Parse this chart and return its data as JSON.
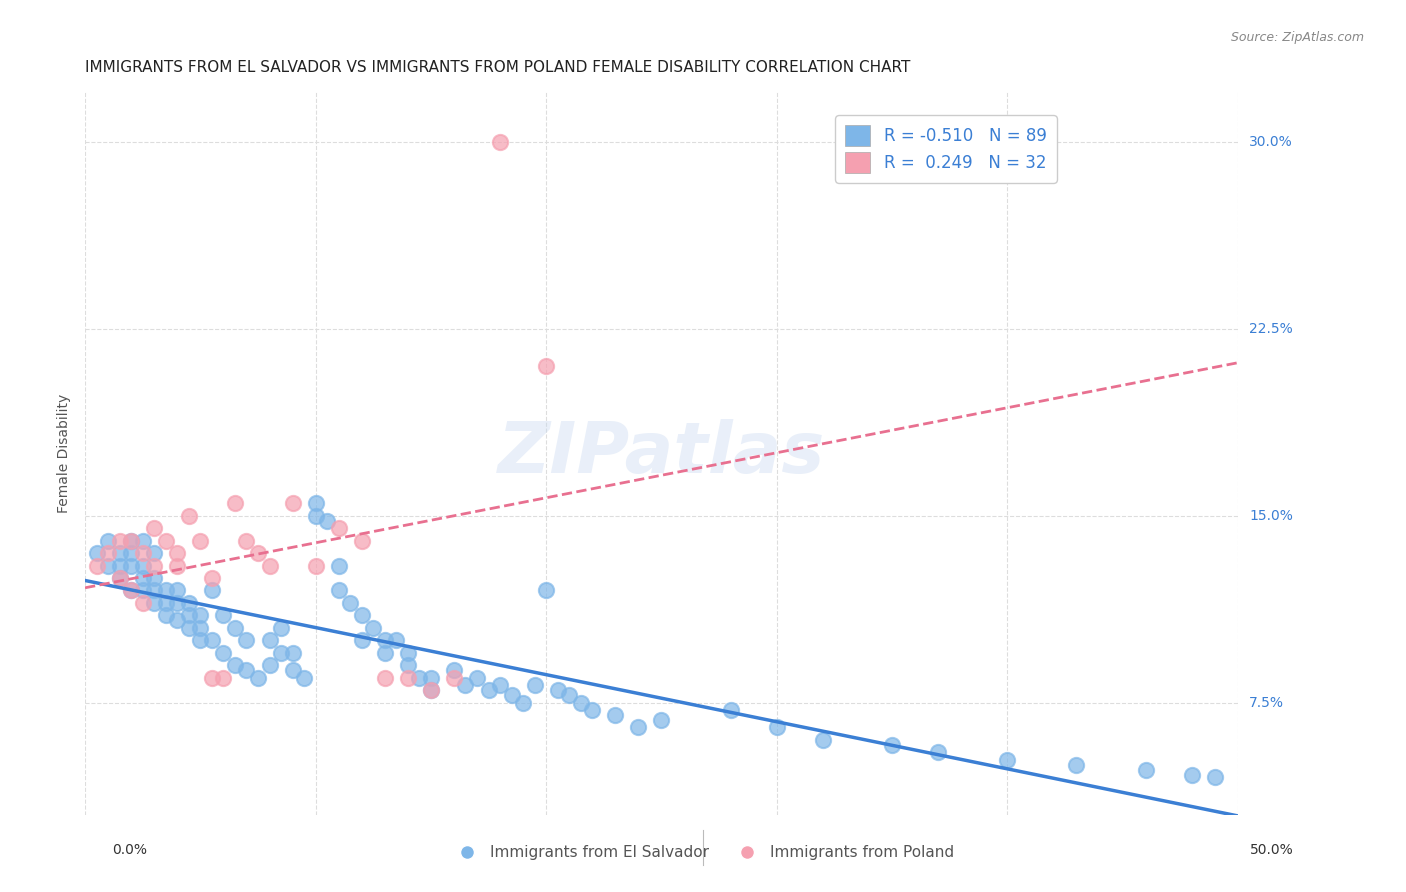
{
  "title": "IMMIGRANTS FROM EL SALVADOR VS IMMIGRANTS FROM POLAND FEMALE DISABILITY CORRELATION CHART",
  "source": "Source: ZipAtlas.com",
  "ylabel": "Female Disability",
  "y_ticks": [
    0.075,
    0.15,
    0.225,
    0.3
  ],
  "y_tick_labels": [
    "7.5%",
    "15.0%",
    "22.5%",
    "30.0%"
  ],
  "x_ticks": [
    0.0,
    0.1,
    0.2,
    0.3,
    0.4,
    0.5
  ],
  "xlim": [
    0.0,
    0.5
  ],
  "ylim": [
    0.03,
    0.32
  ],
  "r_salvador": -0.51,
  "n_salvador": 89,
  "r_poland": 0.249,
  "n_poland": 32,
  "blue_color": "#7EB6E8",
  "pink_color": "#F5A0B0",
  "blue_line_color": "#3B7FD4",
  "pink_line_color": "#E87090",
  "legend_text_color": "#3B7FD4",
  "watermark": "ZIPatlas",
  "background_color": "#FFFFFF",
  "grid_color": "#DDDDDD",
  "salvador_x": [
    0.005,
    0.01,
    0.01,
    0.015,
    0.015,
    0.015,
    0.02,
    0.02,
    0.02,
    0.02,
    0.025,
    0.025,
    0.025,
    0.025,
    0.03,
    0.03,
    0.03,
    0.03,
    0.035,
    0.035,
    0.035,
    0.04,
    0.04,
    0.04,
    0.045,
    0.045,
    0.045,
    0.05,
    0.05,
    0.05,
    0.055,
    0.055,
    0.06,
    0.06,
    0.065,
    0.065,
    0.07,
    0.07,
    0.075,
    0.08,
    0.08,
    0.085,
    0.085,
    0.09,
    0.09,
    0.095,
    0.1,
    0.1,
    0.105,
    0.11,
    0.11,
    0.115,
    0.12,
    0.12,
    0.125,
    0.13,
    0.13,
    0.135,
    0.14,
    0.14,
    0.145,
    0.15,
    0.15,
    0.16,
    0.165,
    0.17,
    0.175,
    0.18,
    0.185,
    0.19,
    0.195,
    0.2,
    0.205,
    0.21,
    0.215,
    0.22,
    0.23,
    0.24,
    0.25,
    0.28,
    0.3,
    0.32,
    0.35,
    0.37,
    0.4,
    0.43,
    0.46,
    0.48,
    0.49
  ],
  "salvador_y": [
    0.135,
    0.13,
    0.14,
    0.125,
    0.13,
    0.135,
    0.12,
    0.13,
    0.135,
    0.14,
    0.12,
    0.125,
    0.13,
    0.14,
    0.115,
    0.12,
    0.125,
    0.135,
    0.11,
    0.115,
    0.12,
    0.108,
    0.115,
    0.12,
    0.105,
    0.11,
    0.115,
    0.1,
    0.105,
    0.11,
    0.1,
    0.12,
    0.095,
    0.11,
    0.09,
    0.105,
    0.088,
    0.1,
    0.085,
    0.09,
    0.1,
    0.095,
    0.105,
    0.088,
    0.095,
    0.085,
    0.15,
    0.155,
    0.148,
    0.12,
    0.13,
    0.115,
    0.1,
    0.11,
    0.105,
    0.1,
    0.095,
    0.1,
    0.09,
    0.095,
    0.085,
    0.08,
    0.085,
    0.088,
    0.082,
    0.085,
    0.08,
    0.082,
    0.078,
    0.075,
    0.082,
    0.12,
    0.08,
    0.078,
    0.075,
    0.072,
    0.07,
    0.065,
    0.068,
    0.072,
    0.065,
    0.06,
    0.058,
    0.055,
    0.052,
    0.05,
    0.048,
    0.046,
    0.045
  ],
  "poland_x": [
    0.005,
    0.01,
    0.015,
    0.015,
    0.02,
    0.02,
    0.025,
    0.025,
    0.03,
    0.03,
    0.035,
    0.04,
    0.04,
    0.045,
    0.05,
    0.055,
    0.055,
    0.06,
    0.065,
    0.07,
    0.075,
    0.08,
    0.09,
    0.1,
    0.11,
    0.12,
    0.13,
    0.14,
    0.15,
    0.16,
    0.18,
    0.2
  ],
  "poland_y": [
    0.13,
    0.135,
    0.125,
    0.14,
    0.12,
    0.14,
    0.115,
    0.135,
    0.13,
    0.145,
    0.14,
    0.13,
    0.135,
    0.15,
    0.14,
    0.125,
    0.085,
    0.085,
    0.155,
    0.14,
    0.135,
    0.13,
    0.155,
    0.13,
    0.145,
    0.14,
    0.085,
    0.085,
    0.08,
    0.085,
    0.3,
    0.21
  ]
}
